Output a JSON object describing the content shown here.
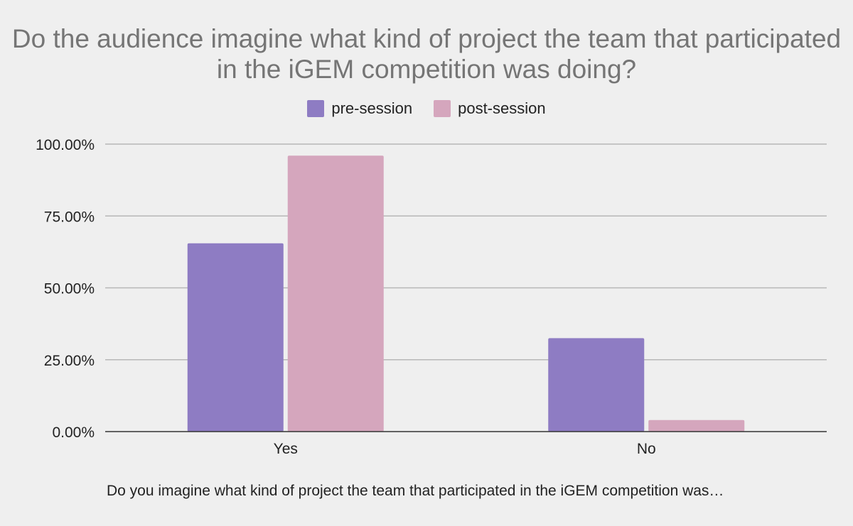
{
  "chart_data": {
    "type": "bar",
    "title": "Do the audience imagine what kind of project the team that participated in the iGEM competition was doing?",
    "xlabel": "Do you imagine what kind of project the team that participated in the iGEM competition was…",
    "ylabel": "",
    "categories": [
      "Yes",
      "No"
    ],
    "series": [
      {
        "name": "pre-session",
        "values": [
          65.5,
          32.5
        ],
        "color": "#8e7cc3"
      },
      {
        "name": "post-session",
        "values": [
          96.0,
          4.0
        ],
        "color": "#d5a6bd"
      }
    ],
    "ylim": [
      0,
      100
    ],
    "yticks": [
      "0.00%",
      "25.00%",
      "50.00%",
      "75.00%",
      "100.00%"
    ],
    "ytick_values": [
      0,
      25,
      50,
      75,
      100
    ],
    "grid": true,
    "legend_position": "top"
  }
}
